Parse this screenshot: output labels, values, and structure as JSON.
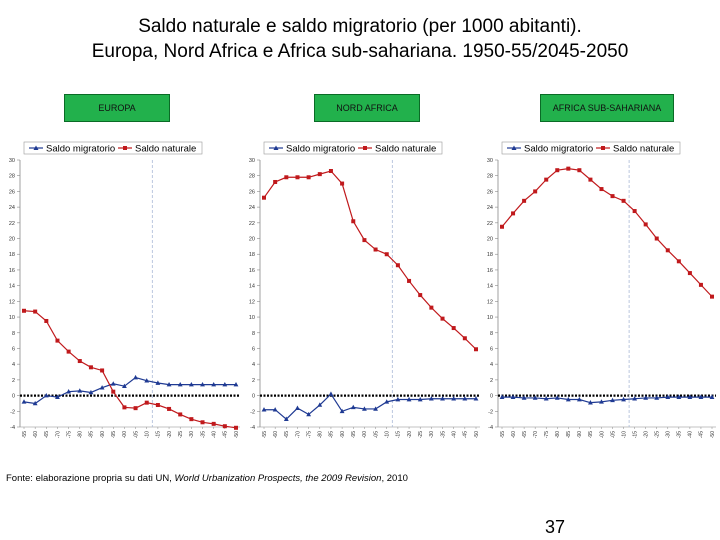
{
  "title": {
    "line1": "Saldo naturale e saldo migratorio (per 1000 abitanti).",
    "line2": "Europa, Nord Africa e Africa sub-sahariana. 1950-55/2045-2050"
  },
  "region_labels": [
    "EUROPA",
    "NORD AFRICA",
    "AFRICA SUB-SAHARIANA"
  ],
  "source": {
    "prefix": "Fonte: elaborazione propria su dati UN, ",
    "work": "World Urbanization Prospects, the 2009 Revision",
    "suffix": ", 2010"
  },
  "page_number": "37",
  "colors": {
    "migratorio": "#1f3a93",
    "naturale": "#c0191c",
    "tag_bg": "#22b14c"
  },
  "chart_data": [
    {
      "type": "line",
      "region": "EUROPA",
      "categories": [
        "1950-55",
        "1955-60",
        "1960-65",
        "1965-70",
        "1970-75",
        "1975-80",
        "1980-85",
        "1985-90",
        "1990-95",
        "1995-00",
        "2000-05",
        "2005-10",
        "2010-15",
        "2015-20",
        "2020-25",
        "2025-30",
        "2030-35",
        "2035-40",
        "2040-45",
        "2045-50"
      ],
      "ylim": [
        -4,
        30
      ],
      "yticks": [
        -4,
        -2,
        0,
        2,
        4,
        6,
        8,
        10,
        12,
        14,
        16,
        18,
        20,
        22,
        24,
        26,
        28,
        30
      ],
      "legend_position": "top",
      "series": [
        {
          "name": "Saldo migratorio",
          "values": [
            -0.8,
            -1.0,
            0.0,
            -0.2,
            0.5,
            0.6,
            0.4,
            1.0,
            1.5,
            1.2,
            2.3,
            1.9,
            1.6,
            1.4,
            1.4,
            1.4,
            1.4,
            1.4,
            1.4,
            1.4
          ]
        },
        {
          "name": "Saldo naturale",
          "values": [
            10.8,
            10.7,
            9.5,
            7.0,
            5.6,
            4.4,
            3.6,
            3.2,
            0.5,
            -1.5,
            -1.6,
            -0.9,
            -1.2,
            -1.7,
            -2.4,
            -3.0,
            -3.4,
            -3.6,
            -3.9,
            -4.1
          ]
        }
      ]
    },
    {
      "type": "line",
      "region": "NORD AFRICA",
      "categories": [
        "1950-55",
        "1955-60",
        "1960-65",
        "1965-70",
        "1970-75",
        "1975-80",
        "1980-85",
        "1985-90",
        "1990-95",
        "1995-00",
        "2000-05",
        "2005-10",
        "2010-15",
        "2015-20",
        "2020-25",
        "2025-30",
        "2030-35",
        "2035-40",
        "2040-45",
        "2045-50"
      ],
      "ylim": [
        -4,
        30
      ],
      "yticks": [
        -4,
        -2,
        0,
        2,
        4,
        6,
        8,
        10,
        12,
        14,
        16,
        18,
        20,
        22,
        24,
        26,
        28,
        30
      ],
      "legend_position": "top",
      "series": [
        {
          "name": "Saldo migratorio",
          "values": [
            -1.8,
            -1.8,
            -3.0,
            -1.6,
            -2.4,
            -1.2,
            0.2,
            -2.0,
            -1.5,
            -1.7,
            -1.7,
            -0.8,
            -0.5,
            -0.5,
            -0.5,
            -0.4,
            -0.4,
            -0.4,
            -0.4,
            -0.4
          ]
        },
        {
          "name": "Saldo naturale",
          "values": [
            25.2,
            27.2,
            27.8,
            27.8,
            27.8,
            28.2,
            28.6,
            27.0,
            22.2,
            19.8,
            18.6,
            18.0,
            16.6,
            14.6,
            12.8,
            11.2,
            9.8,
            8.6,
            7.3,
            5.9
          ]
        }
      ]
    },
    {
      "type": "line",
      "region": "AFRICA SUB-SAHARIANA",
      "categories": [
        "1950-55",
        "1955-60",
        "1960-65",
        "1965-70",
        "1970-75",
        "1975-80",
        "1980-85",
        "1985-90",
        "1990-95",
        "1995-00",
        "2000-05",
        "2005-10",
        "2010-15",
        "2015-20",
        "2020-25",
        "2025-30",
        "2030-35",
        "2035-40",
        "2040-45",
        "2045-50"
      ],
      "ylim": [
        -4,
        30
      ],
      "yticks": [
        -4,
        -2,
        0,
        2,
        4,
        6,
        8,
        10,
        12,
        14,
        16,
        18,
        20,
        22,
        24,
        26,
        28,
        30
      ],
      "legend_position": "top",
      "series": [
        {
          "name": "Saldo migratorio",
          "values": [
            -0.2,
            -0.2,
            -0.3,
            -0.3,
            -0.4,
            -0.3,
            -0.5,
            -0.5,
            -0.9,
            -0.8,
            -0.6,
            -0.5,
            -0.4,
            -0.3,
            -0.3,
            -0.2,
            -0.2,
            -0.2,
            -0.2,
            -0.2
          ]
        },
        {
          "name": "Saldo naturale",
          "values": [
            21.5,
            23.2,
            24.8,
            26.0,
            27.5,
            28.7,
            28.9,
            28.7,
            27.5,
            26.3,
            25.4,
            24.8,
            23.5,
            21.8,
            20.0,
            18.5,
            17.1,
            15.6,
            14.1,
            12.6
          ]
        }
      ]
    }
  ]
}
